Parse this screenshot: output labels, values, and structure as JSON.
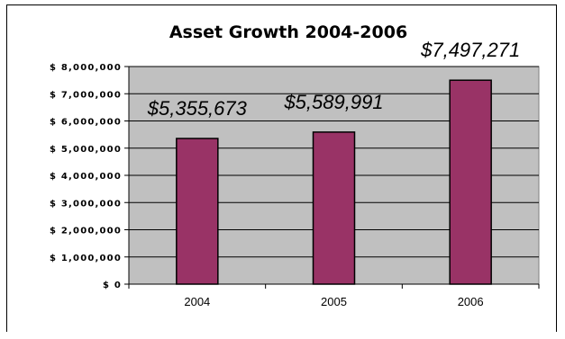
{
  "chart_data": {
    "type": "bar",
    "title": "Asset Growth 2004-2006",
    "xlabel": "",
    "ylabel": "",
    "categories": [
      "2004",
      "2005",
      "2006"
    ],
    "values": [
      5355673,
      5589991,
      7497271
    ],
    "data_labels": [
      "$5,355,673",
      "$5,589,991",
      "$7,497,271"
    ],
    "y_ticks": [
      {
        "value": 0,
        "label": "$ 0"
      },
      {
        "value": 1000000,
        "label": "$ 1,000,000"
      },
      {
        "value": 2000000,
        "label": "$ 2,000,000"
      },
      {
        "value": 3000000,
        "label": "$ 3,000,000"
      },
      {
        "value": 4000000,
        "label": "$ 4,000,000"
      },
      {
        "value": 5000000,
        "label": "$ 5,000,000"
      },
      {
        "value": 6000000,
        "label": "$ 6,000,000"
      },
      {
        "value": 7000000,
        "label": "$ 7,000,000"
      },
      {
        "value": 8000000,
        "label": "$ 8,000,000"
      }
    ],
    "ylim": [
      0,
      8000000
    ],
    "grid": true,
    "legend": "none",
    "colors": {
      "bar": "#993366",
      "plot_background": "#c0c0c0",
      "gridline": "#000000"
    }
  }
}
